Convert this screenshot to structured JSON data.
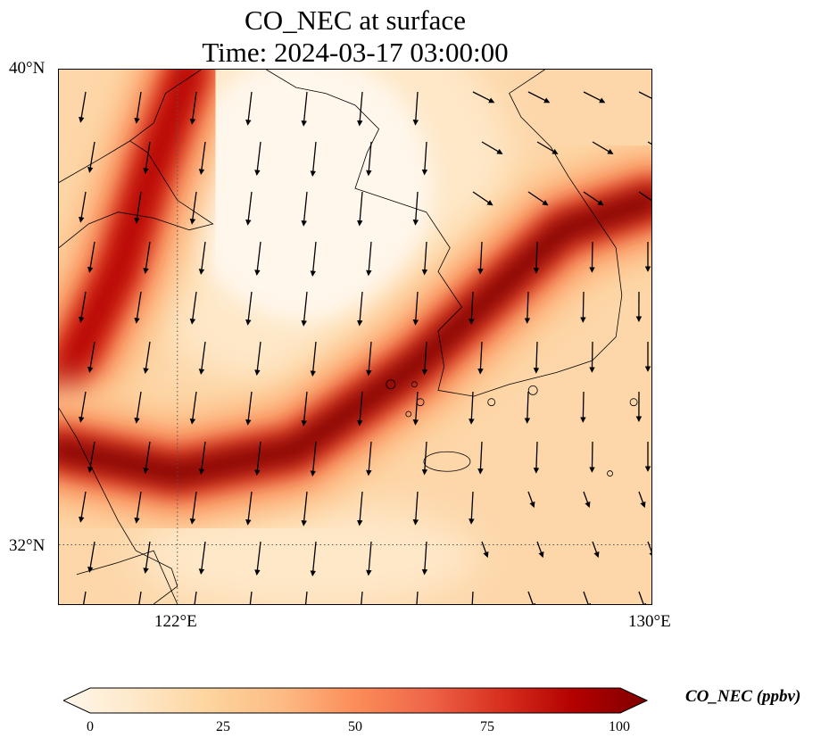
{
  "title": {
    "line1": "CO_NEC at surface",
    "line2": "Time: 2024-03-17 03:00:00"
  },
  "axes": {
    "lat_labels": [
      "40°N",
      "32°N"
    ],
    "lon_labels": [
      "122°E",
      "130°E"
    ],
    "lat_range": [
      31,
      40
    ],
    "lon_range": [
      120,
      130
    ],
    "gridlines": "dotted at 122°E and 32°N"
  },
  "colorbar": {
    "label": "CO_NEC (ppbv)",
    "ticks": [
      "0",
      "25",
      "50",
      "75",
      "100"
    ],
    "range": [
      0,
      100
    ],
    "colormap": "OrRd",
    "extend": "both",
    "colors": [
      "#fff7ec",
      "#fee8c8",
      "#fdd49e",
      "#fdbb84",
      "#fc8d59",
      "#ef6548",
      "#d7301f",
      "#b30000",
      "#7f0000"
    ]
  },
  "field": {
    "variable": "CO_NEC",
    "plumes": [
      {
        "name": "northwest-plume",
        "path_lonlat": [
          [
            120.0,
            34.6
          ],
          [
            121.0,
            36.6
          ],
          [
            121.6,
            38.4
          ],
          [
            122.2,
            40.0
          ]
        ],
        "peak_ppbv": 90
      },
      {
        "name": "southern-band",
        "path_lonlat": [
          [
            120.0,
            33.6
          ],
          [
            122.0,
            33.2
          ],
          [
            124.0,
            33.6
          ],
          [
            126.0,
            35.0
          ],
          [
            128.5,
            37.3
          ],
          [
            130.0,
            37.8
          ]
        ],
        "peak_ppbv": 95
      }
    ],
    "clean_region": {
      "center_lonlat": [
        124.2,
        38.0
      ],
      "value_ppbv": 3
    },
    "background_ppbv": 22
  },
  "wind": {
    "type": "quiver",
    "prevailing": "northerly to north-northwesterly over sea; westerly over northeast corner"
  },
  "coastline": "Shandong peninsula, Bohai coast, Korean peninsula, Jeju island, Jiangsu coast"
}
